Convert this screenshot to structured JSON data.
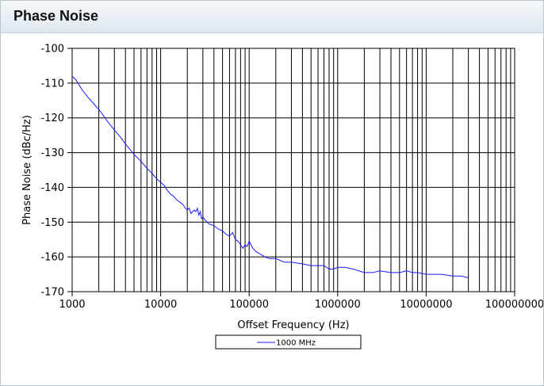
{
  "panel": {
    "title": "Phase Noise"
  },
  "chart_data": {
    "type": "line",
    "title": "",
    "xlabel": "Offset Frequency (Hz)",
    "ylabel": "Phase Noise (dBc/Hz)",
    "xscale": "log",
    "xlim": [
      1000,
      100000000
    ],
    "ylim": [
      -170,
      -100
    ],
    "x_ticks": [
      "1000",
      "10000",
      "100000",
      "1000000",
      "10000000",
      "100000000"
    ],
    "y_ticks": [
      "-100",
      "-110",
      "-120",
      "-130",
      "-140",
      "-150",
      "-160",
      "-170"
    ],
    "grid": {
      "x": "log-major-minor",
      "y": "major"
    },
    "legend_position": "bottom",
    "colors": {
      "series": "#1a1aff",
      "grid": "#000000",
      "border": "#000000"
    },
    "series": [
      {
        "name": "1000 MHz",
        "x": [
          1000,
          1100,
          1300,
          1500,
          1700,
          1900,
          2000,
          2200,
          2500,
          3000,
          3500,
          4000,
          5000,
          6000,
          7000,
          8000,
          9000,
          10000,
          11000,
          12000,
          13000,
          14000,
          15000,
          16000,
          17000,
          18000,
          19000,
          20000,
          21000,
          22000,
          24000,
          25000,
          26000,
          27000,
          28000,
          29000,
          30000,
          32000,
          35000,
          40000,
          45000,
          50000,
          55000,
          60000,
          65000,
          70000,
          75000,
          80000,
          85000,
          90000,
          95000,
          100000,
          110000,
          120000,
          130000,
          150000,
          170000,
          200000,
          250000,
          300000,
          400000,
          500000,
          600000,
          700000,
          800000,
          900000,
          1000000,
          1200000,
          1500000,
          2000000,
          2500000,
          3000000,
          4000000,
          5000000,
          6000000,
          7000000,
          8000000,
          10000000,
          12000000,
          15000000,
          20000000,
          25000000,
          30000000
        ],
        "values": [
          -108,
          -109,
          -112,
          -114,
          -115.5,
          -117,
          -117.5,
          -119,
          -121,
          -123.5,
          -125.5,
          -127.5,
          -130.5,
          -132.5,
          -134.5,
          -136,
          -137.5,
          -138.5,
          -139.5,
          -141,
          -142,
          -142.5,
          -143.5,
          -144,
          -144.5,
          -145,
          -146,
          -146.5,
          -146,
          -147.5,
          -146.5,
          -147,
          -146,
          -148,
          -147,
          -149,
          -148.5,
          -149.5,
          -150.5,
          -151,
          -152,
          -152.5,
          -153.5,
          -154,
          -153,
          -155,
          -155.5,
          -156.5,
          -157.5,
          -156.5,
          -157,
          -155.5,
          -157.5,
          -158.5,
          -159,
          -160,
          -160.5,
          -160.5,
          -161.5,
          -161.5,
          -162,
          -162.5,
          -162.5,
          -162.5,
          -163.5,
          -163.5,
          -163,
          -163,
          -163.5,
          -164.5,
          -164.5,
          -164,
          -164.5,
          -164.5,
          -164,
          -164.5,
          -164.5,
          -165,
          -165,
          -165,
          -165.5,
          -165.5,
          -166
        ]
      }
    ]
  }
}
